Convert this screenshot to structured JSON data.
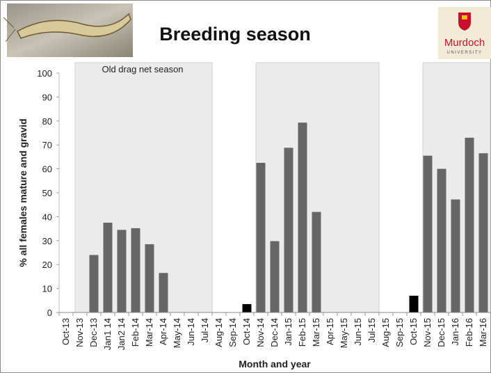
{
  "chart_data": {
    "type": "bar",
    "title": "Breeding season",
    "y_label": "% all females mature and gravid",
    "x_label": "Month and year",
    "annotation": "Old drag net season",
    "categories": [
      "Oct-13",
      "Nov-13",
      "Dec-13",
      "Jan1 14",
      "Jan2 14",
      "Feb-14",
      "Mar-14",
      "Apr-14",
      "May-14",
      "Jun-14",
      "Jul-14",
      "Aug-14",
      "Sep-14",
      "Oct-14",
      "Nov-14",
      "Dec-14",
      "Jan-15",
      "Feb-15",
      "Mar-15",
      "Apr-15",
      "May-15",
      "Jun-15",
      "Jul-15",
      "Aug-15",
      "Sep-15",
      "Oct-15",
      "Nov-15",
      "Dec-15",
      "Jan-16",
      "Feb-16",
      "Mar-16"
    ],
    "values": [
      0,
      0,
      24,
      37.5,
      34.5,
      35.2,
      28.5,
      16.5,
      0,
      0,
      0,
      0,
      0,
      3.5,
      62.5,
      29.8,
      68.8,
      79.3,
      42,
      0,
      0,
      0,
      0,
      0,
      0,
      7,
      65.5,
      60,
      47.2,
      73,
      66.5
    ],
    "colors": [
      "#666666",
      "#666666",
      "#666666",
      "#666666",
      "#666666",
      "#666666",
      "#666666",
      "#666666",
      "#666666",
      "#666666",
      "#666666",
      "#666666",
      "#666666",
      "#000000",
      "#666666",
      "#666666",
      "#666666",
      "#666666",
      "#666666",
      "#666666",
      "#666666",
      "#666666",
      "#666666",
      "#666666",
      "#666666",
      "#000000",
      "#666666",
      "#666666",
      "#666666",
      "#666666",
      "#666666"
    ],
    "shaded_ranges": [
      [
        1,
        10
      ],
      [
        14,
        22
      ],
      [
        26,
        30
      ]
    ],
    "shade_color": "#ebebeb",
    "ylim": [
      0,
      100
    ],
    "yticks": [
      0,
      10,
      20,
      30,
      40,
      50,
      60,
      70,
      80,
      90,
      100
    ]
  },
  "logo": {
    "name": "Murdoch",
    "subtitle": "UNIVERSITY"
  }
}
